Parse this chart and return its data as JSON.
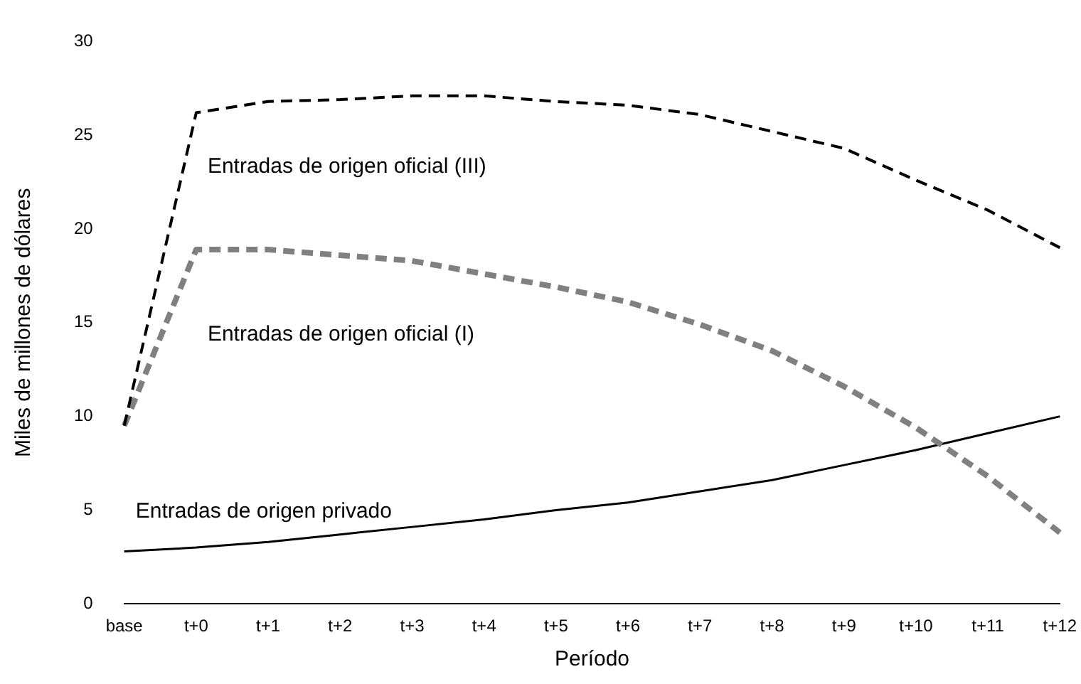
{
  "chart_data": {
    "type": "line",
    "xlabel": "Período",
    "ylabel": "Miles de millones de dólares",
    "categories": [
      "base",
      "t+0",
      "t+1",
      "t+2",
      "t+3",
      "t+4",
      "t+5",
      "t+6",
      "t+7",
      "t+8",
      "t+9",
      "t+10",
      "t+11",
      "t+12"
    ],
    "series": [
      {
        "name": "Entradas de origen oficial (III)",
        "color": "#000000",
        "line_style": "dashed",
        "values": [
          9.5,
          26.2,
          26.8,
          26.9,
          27.1,
          27.1,
          26.8,
          26.6,
          26.1,
          25.2,
          24.3,
          22.6,
          21.0,
          19.0
        ]
      },
      {
        "name": "Entradas de origen oficial (I)",
        "color": "#808080",
        "line_style": "dashed",
        "values": [
          9.5,
          18.9,
          18.9,
          18.6,
          18.3,
          17.6,
          16.9,
          16.1,
          14.9,
          13.5,
          11.6,
          9.4,
          6.8,
          3.8
        ]
      },
      {
        "name": "Entradas de origen privado",
        "color": "#000000",
        "line_style": "solid",
        "values": [
          2.8,
          3.0,
          3.3,
          3.7,
          4.1,
          4.5,
          5.0,
          5.4,
          6.0,
          6.6,
          7.4,
          8.2,
          9.1,
          10.0
        ]
      }
    ],
    "ylim": [
      0,
      30
    ],
    "yticks": [
      0,
      5,
      10,
      15,
      20,
      25,
      30
    ],
    "grid": false,
    "legend": false,
    "marker": "none"
  }
}
